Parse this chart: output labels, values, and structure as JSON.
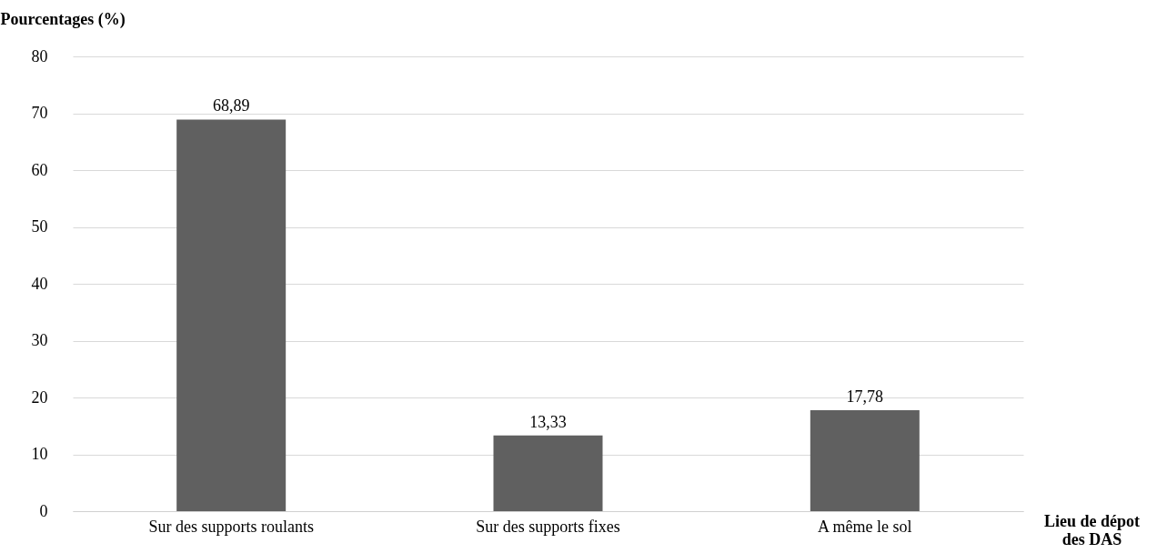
{
  "chart_data": {
    "type": "bar",
    "ylabel": "Pourcentages (%)",
    "xlabel": "Lieu de dépot des DAS",
    "categories": [
      "Sur des supports roulants",
      "Sur des supports fixes",
      "A même le sol"
    ],
    "values": [
      68.89,
      13.33,
      17.78
    ],
    "value_labels": [
      "68,89",
      "13,33",
      "17,78"
    ],
    "color": "#606060",
    "ylim": [
      0,
      80
    ],
    "yticks": [
      0,
      10,
      20,
      30,
      40,
      50,
      60,
      70,
      80
    ],
    "grid": "y"
  }
}
